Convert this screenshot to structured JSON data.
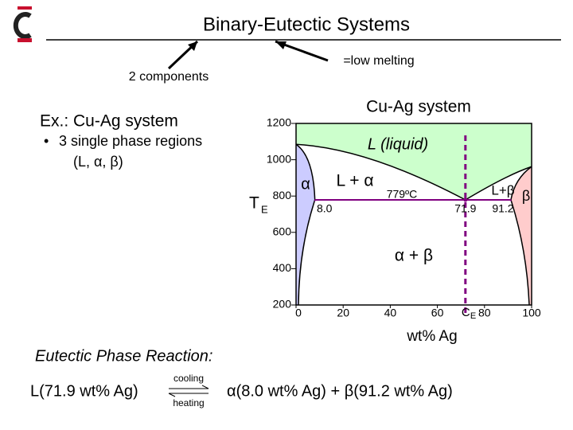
{
  "header": {
    "title": "Binary-Eutectic Systems"
  },
  "annotations": {
    "components": "2 components",
    "low_melting": "=low melting"
  },
  "example": {
    "heading": "Ex.: Cu-Ag system",
    "bullet": "3 single phase regions",
    "bullet_detail": "(L, α, β)"
  },
  "diagram": {
    "title": "Cu-Ag system",
    "xlabel": "wt% Ag",
    "xlim": [
      0,
      100
    ],
    "ylim": [
      200,
      1200
    ],
    "xticks": [
      0,
      20,
      40,
      60,
      80,
      100
    ],
    "yticks": [
      200,
      400,
      600,
      800,
      1000,
      1200
    ],
    "melting_points": [
      1085,
      962
    ],
    "regions": {
      "liquid": "L (liquid)",
      "alpha": "α",
      "beta": "β",
      "l_alpha": "L + α",
      "l_beta": "L+β",
      "alpha_beta": "α + β"
    },
    "eutectic_temperature": 779,
    "eutectic_temperature_label": "779ºC",
    "te_label": "T",
    "te_sub": "E",
    "ce_label": "C",
    "ce_sub": "E",
    "compositions": [
      {
        "value": 8.0,
        "label": "8.0"
      },
      71.9,
      91.2
    ]
  },
  "reaction": {
    "heading": "Eutectic Phase Reaction:",
    "left": "L(71.9 wt% Ag)",
    "cooling": "cooling",
    "heating": "heating",
    "right": "α(8.0 wt% Ag) + β(91.2 wt% Ag)"
  }
}
